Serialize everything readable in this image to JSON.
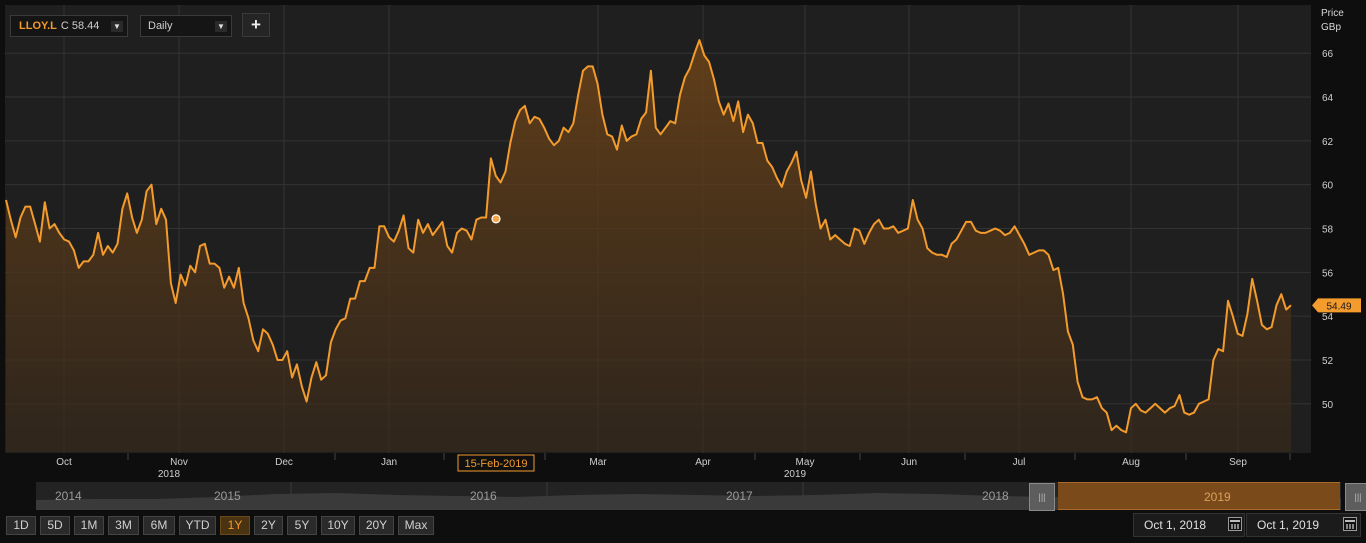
{
  "symbol": {
    "ticker": "LLOY.L",
    "close_label": "C 58.44"
  },
  "frequency": {
    "value": "Daily"
  },
  "add_button": "+",
  "axis_title": {
    "line1": "Price",
    "line2": "GBp"
  },
  "colors": {
    "line": "#f39b2c",
    "background": "#1f1f1f",
    "grid": "#333333",
    "current_price_bg": "#f39b2c"
  },
  "chart_data": {
    "type": "area",
    "title": "",
    "ylabel": "Price GBp",
    "ylim": [
      47.8,
      68.2
    ],
    "y_ticks": [
      50,
      52,
      54,
      56,
      58,
      60,
      62,
      64,
      66
    ],
    "x_ticks": [
      {
        "label": "Oct",
        "sublabel": ""
      },
      {
        "label": "Nov",
        "sublabel": "2018"
      },
      {
        "label": "Dec",
        "sublabel": ""
      },
      {
        "label": "Jan",
        "sublabel": ""
      },
      {
        "label": "Mar",
        "sublabel": ""
      },
      {
        "label": "Apr",
        "sublabel": ""
      },
      {
        "label": "May",
        "sublabel": "2019"
      },
      {
        "label": "Jun",
        "sublabel": ""
      },
      {
        "label": "Jul",
        "sublabel": ""
      },
      {
        "label": "Aug",
        "sublabel": ""
      },
      {
        "label": "Sep",
        "sublabel": ""
      }
    ],
    "hover_label": "15-Feb-2019",
    "hover_value": 58.44,
    "current_price_label": "54.49",
    "current_price": 54.49,
    "series": [
      {
        "values": [
          59.3,
          58.4,
          57.6,
          58.5,
          59.0,
          59.0,
          58.2,
          57.4,
          59.2,
          58.0,
          58.2,
          57.8,
          57.5,
          57.4,
          57.0,
          56.2,
          56.5,
          56.5,
          56.8,
          57.8,
          56.8,
          57.2,
          56.9,
          57.3,
          58.9,
          59.6,
          58.5,
          57.8,
          58.4,
          59.7,
          60.0,
          58.2,
          58.9,
          58.4,
          55.5,
          54.6,
          55.9,
          55.4,
          56.3,
          56.0,
          57.2,
          57.3,
          56.4,
          56.4,
          56.2,
          55.3,
          55.8,
          55.3,
          56.2,
          54.6,
          53.9,
          52.9,
          52.4,
          53.4,
          53.2,
          52.7,
          52.0,
          52.0,
          52.4,
          51.2,
          51.8,
          50.8,
          50.1,
          51.2,
          51.9,
          51.1,
          51.3,
          52.8,
          53.4,
          53.8,
          53.9,
          54.8,
          54.8,
          55.6,
          55.6,
          56.2,
          56.2,
          58.1,
          58.1,
          57.6,
          57.4,
          57.9,
          58.6,
          57.1,
          56.9,
          58.4,
          57.8,
          58.2,
          57.7,
          58.0,
          58.3,
          57.2,
          56.9,
          57.8,
          58.0,
          57.9,
          57.5,
          58.4,
          58.5,
          58.5,
          61.2,
          60.4,
          60.1,
          60.6,
          61.9,
          62.9,
          63.4,
          63.6,
          62.8,
          63.1,
          63.0,
          62.6,
          62.1,
          61.8,
          62.0,
          62.6,
          62.4,
          62.8,
          64.1,
          65.2,
          65.4,
          65.4,
          64.6,
          63.2,
          62.3,
          62.2,
          61.6,
          62.7,
          62.0,
          62.2,
          62.3,
          63.0,
          63.3,
          65.2,
          62.6,
          62.3,
          62.6,
          62.9,
          62.8,
          64.1,
          64.9,
          65.3,
          66.0,
          66.6,
          65.9,
          65.6,
          64.8,
          63.8,
          63.2,
          63.7,
          62.9,
          63.8,
          62.4,
          63.2,
          62.8,
          61.9,
          61.9,
          61.1,
          60.8,
          60.3,
          59.9,
          60.6,
          61.0,
          61.5,
          60.2,
          59.4,
          60.6,
          59.1,
          58.0,
          58.4,
          57.5,
          57.7,
          57.5,
          57.3,
          57.2,
          58.0,
          57.9,
          57.3,
          57.8,
          58.2,
          58.4,
          58.0,
          58.0,
          58.1,
          57.8,
          57.9,
          58.0,
          59.3,
          58.4,
          58.0,
          57.1,
          56.9,
          56.8,
          56.8,
          56.7,
          57.3,
          57.5,
          57.9,
          58.3,
          58.3,
          57.9,
          57.8,
          57.8,
          57.9,
          58.0,
          57.9,
          57.7,
          57.8,
          58.1,
          57.7,
          57.3,
          56.8,
          56.9,
          57.0,
          57.0,
          56.8,
          56.1,
          56.2,
          55.0,
          53.3,
          52.7,
          51.0,
          50.3,
          50.2,
          50.2,
          50.3,
          49.8,
          49.6,
          48.8,
          49.0,
          48.8,
          48.7,
          49.8,
          50.0,
          49.7,
          49.6,
          49.8,
          50.0,
          49.8,
          49.6,
          49.8,
          49.9,
          50.4,
          49.6,
          49.5,
          49.6,
          50.0,
          50.1,
          50.2,
          52.0,
          52.5,
          52.4,
          54.7,
          54.0,
          53.2,
          53.1,
          54.1,
          55.7,
          54.7,
          53.6,
          53.4,
          53.5,
          54.5,
          55.0,
          54.3,
          54.5
        ]
      }
    ]
  },
  "navigator": {
    "years": [
      "2014",
      "2015",
      "2016",
      "2017",
      "2018",
      "2019"
    ],
    "handle_glyph": "|||"
  },
  "ranges": [
    {
      "label": "1D"
    },
    {
      "label": "5D"
    },
    {
      "label": "1M"
    },
    {
      "label": "3M"
    },
    {
      "label": "6M"
    },
    {
      "label": "YTD"
    },
    {
      "label": "1Y",
      "active": true
    },
    {
      "label": "2Y"
    },
    {
      "label": "5Y"
    },
    {
      "label": "10Y"
    },
    {
      "label": "20Y"
    },
    {
      "label": "Max"
    }
  ],
  "date_from": "Oct 1, 2018",
  "date_to": "Oct 1, 2019"
}
